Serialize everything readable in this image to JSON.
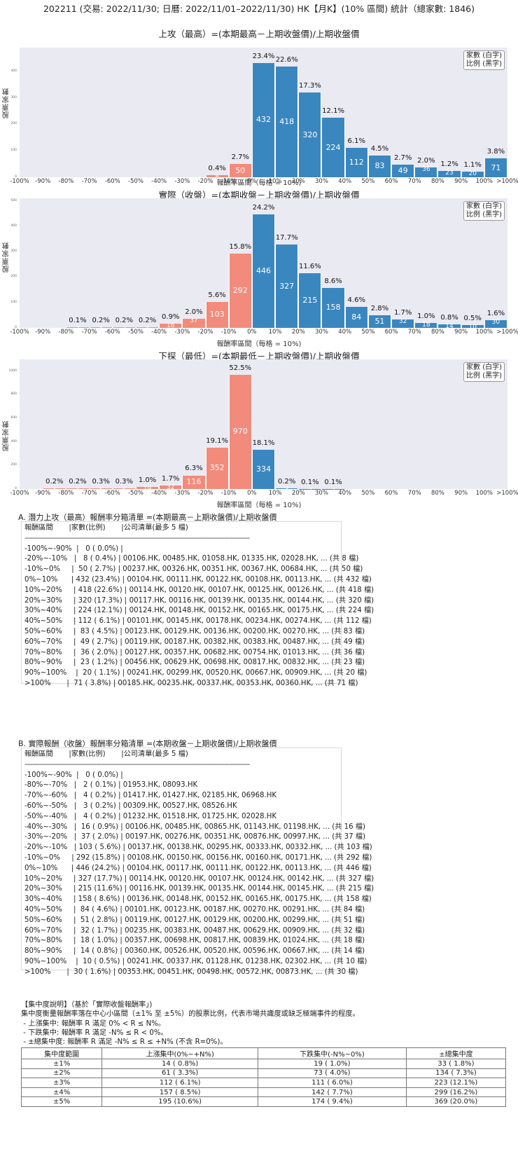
{
  "page_title": "202211 (交易: 2022/11/30; 日曆: 2022/11/01–2022/11/30) HK【月K】(10% 區間) 統計（總家數: 1846)",
  "colors": {
    "negative_bar": "#f28b7b",
    "positive_bar": "#3a87c0",
    "plot_bg": "#eaeaf2"
  },
  "x_ticks": [
    "-100%",
    "-90%",
    "-80%",
    "-70%",
    "-60%",
    "-50%",
    "-40%",
    "-30%",
    "-20%",
    "-10%",
    "0%",
    "10%",
    "20%",
    "30%",
    "40%",
    "50%",
    "60%",
    "70%",
    "80%",
    "90%",
    "100%",
    ">100%"
  ],
  "legend": {
    "line1": "家數 (白字)",
    "line2": "比例 (黑字)"
  },
  "ylabel": "股票家數",
  "xlabel": "報酬率區間（每格 = 10%)",
  "chart_data": [
    {
      "type": "bar",
      "title": "上攻（最高）=(本期最高－上期收盤價)/上期收盤價",
      "xlabel": "報酬率區間（每格 = 10%)",
      "ylabel": "股票家數",
      "ylim": [
        0,
        490
      ],
      "yticks": [
        0,
        100,
        200,
        300,
        400
      ],
      "categories": [
        "-100%~-90%",
        "-90%~-80%",
        "-80%~-70%",
        "-70%~-60%",
        "-60%~-50%",
        "-50%~-40%",
        "-40%~-30%",
        "-30%~-20%",
        "-20%~-10%",
        "-10%~0%",
        "0%~10%",
        "10%~20%",
        "20%~30%",
        "30%~40%",
        "40%~50%",
        "50%~60%",
        "60%~70%",
        "70%~80%",
        "80%~90%",
        "90%~100%",
        ">100%"
      ],
      "values": [
        0,
        0,
        0,
        0,
        0,
        0,
        0,
        0,
        8,
        50,
        432,
        418,
        320,
        224,
        112,
        83,
        49,
        36,
        23,
        20,
        71
      ],
      "pct_labels": [
        "",
        "",
        "",
        "",
        "",
        "",
        "",
        "",
        "0.4%",
        "2.7%",
        "23.4%",
        "22.6%",
        "17.3%",
        "12.1%",
        "6.1%",
        "4.5%",
        "2.7%",
        "2.0%",
        "1.2%",
        "1.1%",
        "3.8%"
      ],
      "count_labels": [
        "",
        "",
        "",
        "",
        "",
        "",
        "",
        "",
        "8",
        "50",
        "432",
        "418",
        "320",
        "224",
        "112",
        "83",
        "49",
        "36",
        "23",
        "20",
        "71"
      ]
    },
    {
      "type": "bar",
      "title": "實際（收盤）=(本期收盤－上期收盤價)/上期收盤價",
      "xlabel": "報酬率區間（每格 = 10%)",
      "ylabel": "股票家數",
      "ylim": [
        0,
        510
      ],
      "yticks": [
        0,
        100,
        200,
        300,
        400,
        500
      ],
      "categories": [
        "-100%~-90%",
        "-90%~-80%",
        "-80%~-70%",
        "-70%~-60%",
        "-60%~-50%",
        "-50%~-40%",
        "-40%~-30%",
        "-30%~-20%",
        "-20%~-10%",
        "-10%~0%",
        "0%~10%",
        "10%~20%",
        "20%~30%",
        "30%~40%",
        "40%~50%",
        "50%~60%",
        "60%~70%",
        "70%~80%",
        "80%~90%",
        "90%~100%",
        ">100%"
      ],
      "values": [
        0,
        0,
        2,
        4,
        3,
        4,
        16,
        37,
        103,
        292,
        446,
        327,
        215,
        158,
        84,
        51,
        32,
        18,
        14,
        10,
        30
      ],
      "pct_labels": [
        "",
        "",
        "0.1%",
        "0.2%",
        "0.2%",
        "0.2%",
        "0.9%",
        "2.0%",
        "5.6%",
        "15.8%",
        "24.2%",
        "17.7%",
        "11.6%",
        "8.6%",
        "4.6%",
        "2.8%",
        "1.7%",
        "1.0%",
        "0.8%",
        "0.5%",
        "1.6%"
      ],
      "count_labels": [
        "",
        "",
        "2",
        "4",
        "3",
        "4",
        "16",
        "37",
        "103",
        "292",
        "446",
        "327",
        "215",
        "158",
        "84",
        "51",
        "32",
        "18",
        "14",
        "10",
        "30"
      ]
    },
    {
      "type": "bar",
      "title": "下探（最低）=(本期最低－上期收盤價)/上期收盤價",
      "xlabel": "報酬率區間（每格 = 10%)",
      "ylabel": "股票家數",
      "ylim": [
        0,
        1100
      ],
      "yticks": [
        0,
        200,
        400,
        600,
        800,
        1000
      ],
      "categories": [
        "-100%~-90%",
        "-90%~-80%",
        "-80%~-70%",
        "-70%~-60%",
        "-60%~-50%",
        "-50%~-40%",
        "-40%~-30%",
        "-30%~-20%",
        "-20%~-10%",
        "-10%~0%",
        "0%~10%",
        "10%~20%",
        "20%~30%",
        "30%~40%",
        "40%~50%",
        "50%~60%",
        "60%~70%",
        "70%~80%",
        "80%~90%",
        "90%~100%",
        ">100%"
      ],
      "values": [
        0,
        4,
        4,
        5,
        5,
        19,
        32,
        116,
        352,
        970,
        334,
        4,
        2,
        2,
        0,
        0,
        0,
        0,
        0,
        0,
        0
      ],
      "pct_labels": [
        "",
        "0.2%",
        "0.2%",
        "0.3%",
        "0.3%",
        "1.0%",
        "1.7%",
        "6.3%",
        "19.1%",
        "52.5%",
        "18.1%",
        "0.2%",
        "0.1%",
        "0.1%",
        "",
        "",
        "",
        "",
        "",
        "",
        ""
      ],
      "count_labels": [
        "",
        "4",
        "4",
        "5",
        "5",
        "19",
        "32",
        "116",
        "352",
        "970",
        "334",
        "4",
        "2",
        "2",
        "",
        "",
        "",
        "",
        "",
        "",
        ""
      ]
    }
  ],
  "section_a": {
    "title": "A. 潛力上攻（最高）報酬率分箱清單 =(本期最高－上期收盤價)/上期收盤價",
    "header": "報酬區間       |家數(比例)       |公司清單(最多 5 檔)",
    "separator": "------------------------------------------------------------------------------------------------------------------------",
    "rows": [
      "-100%~-90%  |   0 ( 0.0%) |",
      "-20%~-10%   |   8 ( 0.4%) | 00106.HK, 00485.HK, 01058.HK, 01335.HK, 02028.HK, ... (共 8 檔)",
      "-10%~0%     |  50 ( 2.7%) | 00237.HK, 00326.HK, 00351.HK, 00367.HK, 00684.HK, ... (共 50 檔)",
      "0%~10%      | 432 (23.4%) | 00104.HK, 00111.HK, 00122.HK, 00108.HK, 00113.HK, ... (共 432 檔)",
      "10%~20%     | 418 (22.6%) | 00114.HK, 00120.HK, 00107.HK, 00125.HK, 00126.HK, ... (共 418 檔)",
      "20%~30%     | 320 (17.3%) | 00117.HK, 00116.HK, 00139.HK, 00135.HK, 00144.HK, ... (共 320 檔)",
      "30%~40%     | 224 (12.1%) | 00124.HK, 00148.HK, 00152.HK, 00165.HK, 00175.HK, ... (共 224 檔)",
      "40%~50%     | 112 ( 6.1%) | 00101.HK, 00145.HK, 00178.HK, 00234.HK, 00274.HK, ... (共 112 檔)",
      "50%~60%     |  83 ( 4.5%) | 00123.HK, 00129.HK, 00136.HK, 00200.HK, 00270.HK, ... (共 83 檔)",
      "60%~70%     |  49 ( 2.7%) | 00119.HK, 00187.HK, 00382.HK, 00383.HK, 00487.HK, ... (共 49 檔)",
      "70%~80%     |  36 ( 2.0%) | 00127.HK, 00357.HK, 00682.HK, 00754.HK, 01013.HK, ... (共 36 檔)",
      "80%~90%     |  23 ( 1.2%) | 00456.HK, 00629.HK, 00698.HK, 00817.HK, 00832.HK, ... (共 23 檔)",
      "90%~100%    |  20 ( 1.1%) | 00241.HK, 00299.HK, 00520.HK, 00667.HK, 00909.HK, ... (共 20 檔)",
      ">100%       |  71 ( 3.8%) | 00185.HK, 00235.HK, 00337.HK, 00353.HK, 00360.HK, ... (共 71 檔)"
    ]
  },
  "section_b": {
    "title": "B. 實際報酬（收盤）報酬率分箱清單 =(本期收盤－上期收盤價)/上期收盤價",
    "header": "報酬區間       |家數(比例)       |公司清單(最多 5 檔)",
    "separator": "------------------------------------------------------------------------------------------------------------------------",
    "rows": [
      "-100%~-90%  |   0 ( 0.0%) |",
      "-80%~-70%   |   2 ( 0.1%) | 01953.HK, 08093.HK",
      "-70%~-60%   |   4 ( 0.2%) | 01417.HK, 01427.HK, 02185.HK, 06968.HK",
      "-60%~-50%   |   3 ( 0.2%) | 00309.HK, 00527.HK, 08526.HK",
      "-50%~-40%   |   4 ( 0.2%) | 01232.HK, 01518.HK, 01725.HK, 02028.HK",
      "-40%~-30%   |  16 ( 0.9%) | 00106.HK, 00485.HK, 00865.HK, 01143.HK, 01198.HK, ... (共 16 檔)",
      "-30%~-20%   |  37 ( 2.0%) | 00197.HK, 00276.HK, 00351.HK, 00876.HK, 00997.HK, ... (共 37 檔)",
      "-20%~-10%   | 103 ( 5.6%) | 00137.HK, 00138.HK, 00295.HK, 00333.HK, 00332.HK, ... (共 103 檔)",
      "-10%~0%     | 292 (15.8%) | 00108.HK, 00150.HK, 00156.HK, 00160.HK, 00171.HK, ... (共 292 檔)",
      "0%~10%      | 446 (24.2%) | 00104.HK, 00117.HK, 00111.HK, 00122.HK, 00113.HK, ... (共 446 檔)",
      "10%~20%     | 327 (17.7%) | 00114.HK, 00120.HK, 00107.HK, 00124.HK, 00142.HK, ... (共 327 檔)",
      "20%~30%     | 215 (11.6%) | 00116.HK, 00139.HK, 00135.HK, 00144.HK, 00145.HK, ... (共 215 檔)",
      "30%~40%     | 158 ( 8.6%) | 00136.HK, 00148.HK, 00152.HK, 00165.HK, 00175.HK, ... (共 158 檔)",
      "40%~50%     |  84 ( 4.6%) | 00101.HK, 00123.HK, 00187.HK, 00270.HK, 00291.HK, ... (共 84 檔)",
      "50%~60%     |  51 ( 2.8%) | 00119.HK, 00127.HK, 00129.HK, 00200.HK, 00299.HK, ... (共 51 檔)",
      "60%~70%     |  32 ( 1.7%) | 00235.HK, 00383.HK, 00487.HK, 00629.HK, 00909.HK, ... (共 32 檔)",
      "70%~80%     |  18 ( 1.0%) | 00357.HK, 00698.HK, 00817.HK, 00839.HK, 01024.HK, ... (共 18 檔)",
      "80%~90%     |  14 ( 0.8%) | 00360.HK, 00526.HK, 00520.HK, 00596.HK, 00667.HK, ... (共 14 檔)",
      "90%~100%    |  10 ( 0.5%) | 00241.HK, 00337.HK, 01128.HK, 01238.HK, 02302.HK, ... (共 10 檔)",
      ">100%       |  30 ( 1.6%) | 00353.HK, 00451.HK, 00498.HK, 00572.HK, 00873.HK, ... (共 30 檔)"
    ]
  },
  "concentration": {
    "heading": "【集中度說明】（基於「實際收盤報酬率」)",
    "description": "集中度衡量報酬率落在中心小區間（±1% 至 ±5%）的股票比例，代表市場共識度或缺乏極端事件的程度。",
    "bullets": [
      " - 上漲集中: 報酬率 R 滿足 0% < R ≤ N%。",
      " - 下跌集中: 報酬率 R 滿足 -N% ≤ R < 0%。",
      " - ±總集中度: 報酬率 R 滿足 -N% ≤ R ≤ +N% (不含 R=0%)。"
    ],
    "columns": [
      "集中度範圍",
      "上漲集中(0%~+N%)",
      "下跌集中(-N%~0%)",
      "±總集中度"
    ],
    "rows": [
      [
        "±1%",
        "14 ( 0.8%)",
        "19 ( 1.0%)",
        "33 ( 1.8%)"
      ],
      [
        "±2%",
        "61 ( 3.3%)",
        "73 ( 4.0%)",
        "134 ( 7.3%)"
      ],
      [
        "±3%",
        "112 ( 6.1%)",
        "111 ( 6.0%)",
        "223 (12.1%)"
      ],
      [
        "±4%",
        "157 ( 8.5%)",
        "142 ( 7.7%)",
        "299 (16.2%)"
      ],
      [
        "±5%",
        "195 (10.6%)",
        "174 ( 9.4%)",
        "369 (20.0%)"
      ]
    ]
  }
}
